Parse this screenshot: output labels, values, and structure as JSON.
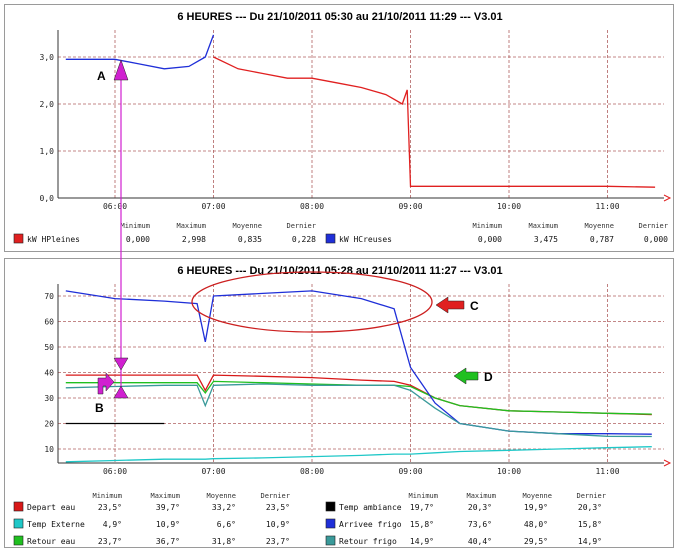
{
  "charts": [
    {
      "title": "6 HEURES --- Du 21/10/2011 05:30 au 21/10/2011 11:29 --- V3.01",
      "x_ticks": [
        "06:00",
        "07:00",
        "08:00",
        "09:00",
        "10:00",
        "11:00"
      ],
      "y_ticks": [
        "0,0",
        "1,0",
        "2,0",
        "3,0"
      ],
      "stat_headers": [
        "Minimum",
        "Maximum",
        "Moyenne",
        "Dernier"
      ],
      "legend": [
        {
          "name": "kW HPleines",
          "color": "#e02020",
          "min": "0,000",
          "max": "2,998",
          "avg": "0,835",
          "last": "0,228"
        },
        {
          "name": "kW HCreuses",
          "color": "#1f2fd8",
          "min": "0,000",
          "max": "3,475",
          "avg": "0,787",
          "last": "0,000"
        }
      ]
    },
    {
      "title": "6 HEURES --- Du 21/10/2011 05:28 au 21/10/2011 11:27 --- V3.01",
      "x_ticks": [
        "06:00",
        "07:00",
        "08:00",
        "09:00",
        "10:00",
        "11:00"
      ],
      "y_ticks": [
        "10",
        "20",
        "30",
        "40",
        "50",
        "60",
        "70"
      ],
      "stat_headers": [
        "Minimum",
        "Maximum",
        "Moyenne",
        "Dernier"
      ],
      "legend_left": [
        {
          "name": "Depart eau",
          "color": "#d81818",
          "min": "23,5°",
          "max": "39,7°",
          "avg": "33,2°",
          "last": "23,5°"
        },
        {
          "name": "Temp Externe",
          "color": "#20c8c8",
          "min": "4,9°",
          "max": "10,9°",
          "avg": "6,6°",
          "last": "10,9°"
        },
        {
          "name": "Retour eau",
          "color": "#20c020",
          "min": "23,7°",
          "max": "36,7°",
          "avg": "31,8°",
          "last": "23,7°"
        }
      ],
      "legend_right": [
        {
          "name": "Temp ambiance",
          "color": "#000000",
          "min": "19,7°",
          "max": "20,3°",
          "avg": "19,9°",
          "last": "20,3°"
        },
        {
          "name": "Arrivee frigo",
          "color": "#1f2fd8",
          "min": "15,8°",
          "max": "73,6°",
          "avg": "48,0°",
          "last": "15,8°"
        },
        {
          "name": "Retour frigo",
          "color": "#3a9a9a",
          "min": "14,9°",
          "max": "40,4°",
          "avg": "29,5°",
          "last": "14,9°"
        }
      ]
    }
  ],
  "annotations": {
    "a": "A",
    "b": "B",
    "c": "C",
    "d": "D"
  },
  "chart_data": [
    {
      "type": "line",
      "title": "6 HEURES --- Du 21/10/2011 05:30 au 21/10/2011 11:29 --- V3.01",
      "x": [
        "05:30",
        "05:45",
        "06:00",
        "06:15",
        "06:30",
        "06:45",
        "06:55",
        "07:00",
        "07:15",
        "07:30",
        "07:45",
        "08:00",
        "08:15",
        "08:30",
        "08:45",
        "08:55",
        "08:58",
        "09:00",
        "09:30",
        "10:00",
        "10:30",
        "11:00",
        "11:29"
      ],
      "series": [
        {
          "name": "kW HPleines",
          "values": [
            null,
            null,
            null,
            null,
            null,
            null,
            null,
            3.0,
            2.75,
            2.65,
            2.55,
            2.55,
            2.45,
            2.35,
            2.2,
            2.0,
            2.3,
            0.25,
            0.25,
            0.25,
            0.25,
            0.25,
            0.23
          ]
        },
        {
          "name": "kW HCreuses",
          "values": [
            2.95,
            2.95,
            2.95,
            2.85,
            2.75,
            2.8,
            3.0,
            3.47,
            null,
            null,
            null,
            null,
            null,
            null,
            null,
            null,
            null,
            null,
            null,
            null,
            null,
            null,
            null
          ]
        }
      ],
      "ylim": [
        0,
        3.5
      ]
    },
    {
      "type": "line",
      "title": "6 HEURES --- Du 21/10/2011 05:28 au 21/10/2011 11:27 --- V3.01",
      "x": [
        "05:30",
        "06:00",
        "06:30",
        "06:50",
        "06:55",
        "07:00",
        "07:30",
        "08:00",
        "08:30",
        "08:50",
        "09:00",
        "09:15",
        "09:30",
        "10:00",
        "10:30",
        "11:00",
        "11:27"
      ],
      "series": [
        {
          "name": "Depart eau",
          "values": [
            39,
            39,
            39,
            39,
            33,
            39,
            38.5,
            38,
            37,
            36.5,
            35,
            30,
            27,
            25,
            24.5,
            24,
            23.5
          ]
        },
        {
          "name": "Temp Externe",
          "values": [
            5,
            5.5,
            6,
            6,
            6,
            6.2,
            6.5,
            7,
            7.5,
            8,
            8,
            8.5,
            9,
            9.5,
            10,
            10.5,
            10.9
          ]
        },
        {
          "name": "Retour eau",
          "values": [
            36,
            36,
            36,
            36,
            32,
            36.5,
            36,
            35.5,
            35,
            35,
            34.5,
            30,
            27,
            25,
            24.5,
            24,
            23.7
          ]
        },
        {
          "name": "Temp ambiance",
          "values": [
            20,
            20,
            20,
            null,
            null,
            null,
            null,
            null,
            null,
            null,
            null,
            null,
            null,
            null,
            null,
            null,
            20.3
          ]
        },
        {
          "name": "Arrivee frigo",
          "values": [
            72,
            69,
            68,
            67,
            52,
            70,
            71,
            72,
            69,
            65,
            42,
            28,
            20,
            17,
            16,
            16,
            15.8
          ]
        },
        {
          "name": "Retour frigo",
          "values": [
            34,
            34.5,
            35,
            35,
            27,
            35,
            35.5,
            35,
            35,
            35,
            33,
            26,
            20,
            17,
            16,
            15,
            14.9
          ]
        }
      ],
      "ylim": [
        5,
        75
      ]
    }
  ]
}
